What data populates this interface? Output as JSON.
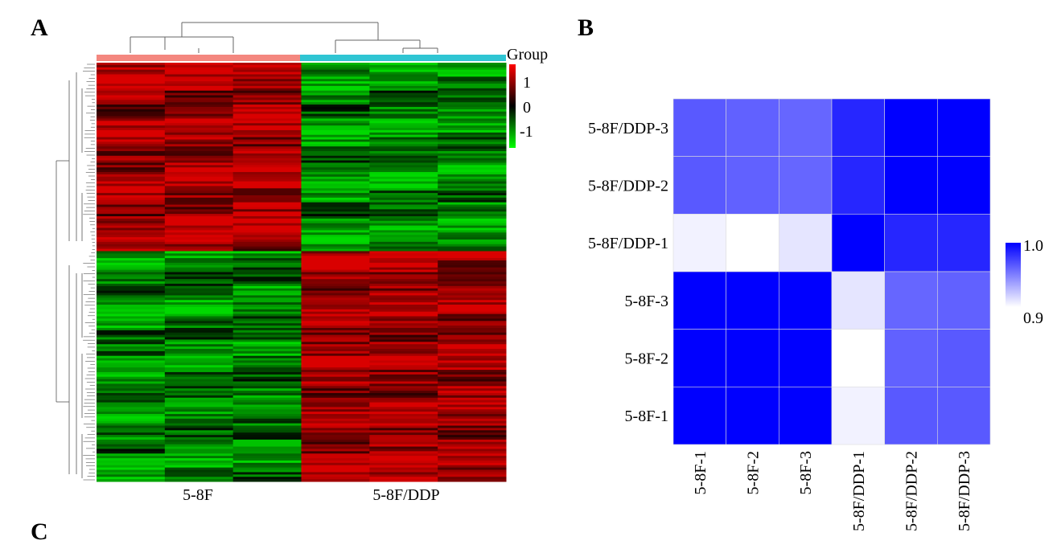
{
  "panels": {
    "a": "A",
    "b": "B",
    "c": "C"
  },
  "chart_data": [
    {
      "type": "heatmap",
      "panel": "A",
      "description_title": "",
      "column_groups": [
        "5-8F",
        "5-8F/DDP"
      ],
      "group_colors": {
        "5-8F": "#f4877f",
        "5-8F/DDP": "#2fc5d3"
      },
      "legend_title": "Group",
      "colorbar": {
        "ticks": [
          "1",
          "0",
          "-1"
        ],
        "range": [
          -1,
          1
        ],
        "colors": {
          "high": "#ff0000",
          "mid": "#000000",
          "low": "#00ff00"
        }
      },
      "clusters": [
        {
          "rows_fraction": 0.45,
          "group_5_8F": "high",
          "group_5_8F_DDP": "low"
        },
        {
          "rows_fraction": 0.55,
          "group_5_8F": "low",
          "group_5_8F_DDP": "high"
        }
      ],
      "dendrogram": {
        "rows": true,
        "columns": true
      }
    },
    {
      "type": "heatmap",
      "panel": "B",
      "x": [
        "5-8F-1",
        "5-8F-2",
        "5-8F-3",
        "5-8F/DDP-1",
        "5-8F/DDP-2",
        "5-8F/DDP-3"
      ],
      "y": [
        "5-8F/DDP-3",
        "5-8F/DDP-2",
        "5-8F/DDP-1",
        "5-8F-3",
        "5-8F-2",
        "5-8F-1"
      ],
      "values": [
        [
          0.965,
          0.962,
          0.96,
          0.985,
          1.0,
          1.0
        ],
        [
          0.965,
          0.962,
          0.96,
          0.985,
          1.0,
          1.0
        ],
        [
          0.905,
          0.9,
          0.91,
          1.0,
          0.985,
          0.985
        ],
        [
          1.0,
          1.0,
          1.0,
          0.91,
          0.96,
          0.962
        ],
        [
          1.0,
          1.0,
          1.0,
          0.9,
          0.962,
          0.965
        ],
        [
          1.0,
          1.0,
          1.0,
          0.905,
          0.965,
          0.965
        ]
      ],
      "colorbar": {
        "ticks": [
          "1.0",
          "0.9"
        ],
        "range": [
          0.9,
          1.0
        ],
        "colors": {
          "high": "#0000ff",
          "low": "#ffffff"
        }
      }
    }
  ]
}
